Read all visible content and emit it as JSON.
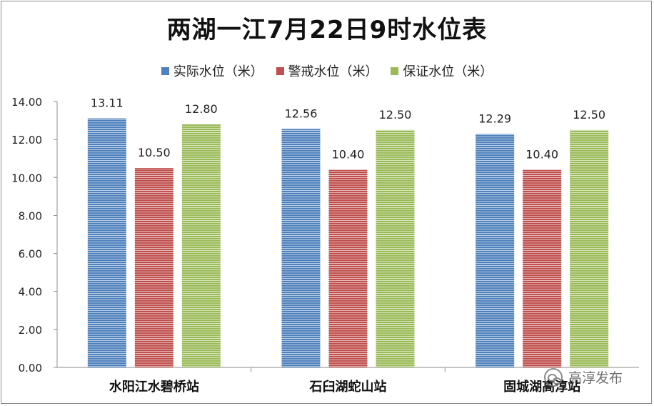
{
  "chart_data": {
    "type": "bar",
    "title": "两湖一江7月22日9时水位表",
    "categories": [
      "水阳江水碧桥站",
      "石臼湖蛇山站",
      "固城湖高淳站"
    ],
    "series": [
      {
        "name": "实际水位（米）",
        "values": [
          13.11,
          12.56,
          12.29
        ],
        "color": "#4F81BD"
      },
      {
        "name": "警戒水位（米）",
        "values": [
          10.5,
          10.4,
          10.4
        ],
        "color": "#C0504D"
      },
      {
        "name": "保证水位（米）",
        "values": [
          12.8,
          12.5,
          12.5
        ],
        "color": "#9BBB59"
      }
    ],
    "data_labels": [
      [
        "13.11",
        "10.50",
        "12.80"
      ],
      [
        "12.56",
        "10.40",
        "12.50"
      ],
      [
        "12.29",
        "10.40",
        "12.50"
      ]
    ],
    "yticks": [
      "0.00",
      "2.00",
      "4.00",
      "6.00",
      "8.00",
      "10.00",
      "12.00",
      "14.00"
    ],
    "ylim": [
      0,
      14
    ],
    "xlabel": "",
    "ylabel": "",
    "grid": false,
    "legend_position": "top"
  },
  "watermark": {
    "text": "高淳发布",
    "icon": "wechat-icon"
  }
}
